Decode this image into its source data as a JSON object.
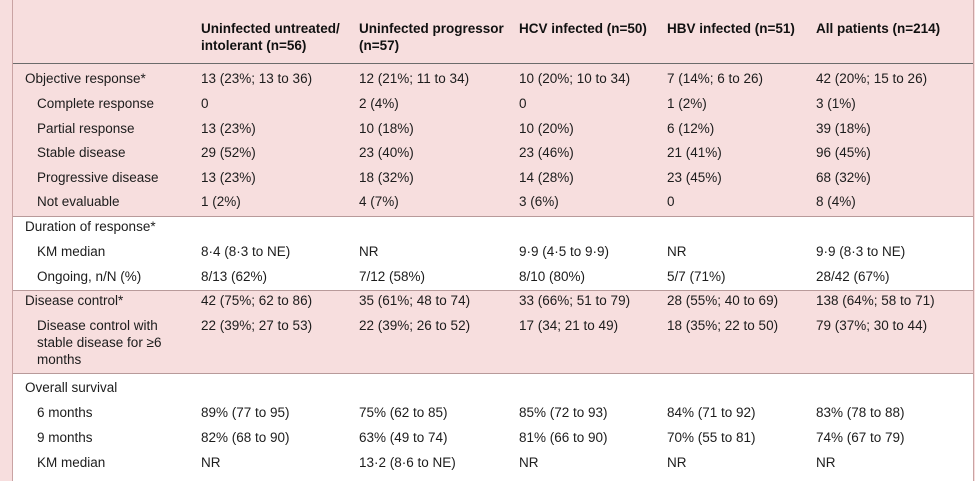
{
  "headers": [
    "Uninfected untreated/ intolerant (n=56)",
    "Uninfected progressor (n=57)",
    "HCV infected (n=50)",
    "HBV infected (n=51)",
    "All patients (n=214)"
  ],
  "rows": [
    {
      "label": "Objective response*",
      "indent": false,
      "values": [
        "13 (23%; 13 to 36)",
        "12 (21%; 11 to 34)",
        "10 (20%; 10 to 34)",
        "7 (14%; 6 to 26)",
        "42 (20%; 15 to 26)"
      ]
    },
    {
      "label": "Complete response",
      "indent": true,
      "values": [
        "0",
        "2 (4%)",
        "0",
        "1 (2%)",
        "3 (1%)"
      ]
    },
    {
      "label": "Partial response",
      "indent": true,
      "values": [
        "13 (23%)",
        "10 (18%)",
        "10 (20%)",
        "6 (12%)",
        "39 (18%)"
      ]
    },
    {
      "label": "Stable disease",
      "indent": true,
      "values": [
        "29 (52%)",
        "23 (40%)",
        "23 (46%)",
        "21 (41%)",
        "96 (45%)"
      ]
    },
    {
      "label": "Progressive disease",
      "indent": true,
      "values": [
        "13 (23%)",
        "18 (32%)",
        "14 (28%)",
        "23 (45%)",
        "68 (32%)"
      ]
    },
    {
      "label": "Not evaluable",
      "indent": true,
      "values": [
        "1 (2%)",
        "4 (7%)",
        "3 (6%)",
        "0",
        "8 (4%)"
      ]
    },
    {
      "label": "Duration of response*",
      "indent": false,
      "values": [
        "",
        "",
        "",
        "",
        ""
      ]
    },
    {
      "label": "KM median",
      "indent": true,
      "values": [
        "8·4 (8·3 to NE)",
        "NR",
        "9·9 (4·5 to 9·9)",
        "NR",
        "9·9 (8·3 to NE)"
      ]
    },
    {
      "label": "Ongoing, n/N (%)",
      "indent": true,
      "values": [
        "8/13 (62%)",
        "7/12 (58%)",
        "8/10 (80%)",
        "5/7 (71%)",
        "28/42 (67%)"
      ]
    },
    {
      "label": "Disease control*",
      "indent": false,
      "values": [
        "42 (75%; 62 to 86)",
        "35 (61%; 48 to 74)",
        "33 (66%; 51 to 79)",
        "28 (55%; 40 to 69)",
        "138 (64%; 58 to 71)"
      ]
    },
    {
      "label": "Disease control with stable disease for ≥6 months",
      "indent": true,
      "values": [
        "22 (39%; 27 to 53)",
        "22 (39%; 26 to 52)",
        "17 (34; 21 to 49)",
        "18 (35%; 22 to 50)",
        "79 (37%; 30 to 44)"
      ]
    },
    {
      "label": "Overall survival",
      "indent": false,
      "values": [
        "",
        "",
        "",
        "",
        ""
      ]
    },
    {
      "label": "6 months",
      "indent": true,
      "values": [
        "89% (77 to 95)",
        "75% (62 to 85)",
        "85% (72 to 93)",
        "84% (71 to 92)",
        "83% (78 to 88)"
      ]
    },
    {
      "label": "9 months",
      "indent": true,
      "values": [
        "82% (68 to 90)",
        "63% (49 to 74)",
        "81% (66 to 90)",
        "70% (55 to 81)",
        "74% (67 to 79)"
      ]
    },
    {
      "label": "KM median",
      "indent": true,
      "values": [
        "NR",
        "13·2 (8·6 to NE)",
        "NR",
        "NR",
        "NR"
      ]
    }
  ]
}
